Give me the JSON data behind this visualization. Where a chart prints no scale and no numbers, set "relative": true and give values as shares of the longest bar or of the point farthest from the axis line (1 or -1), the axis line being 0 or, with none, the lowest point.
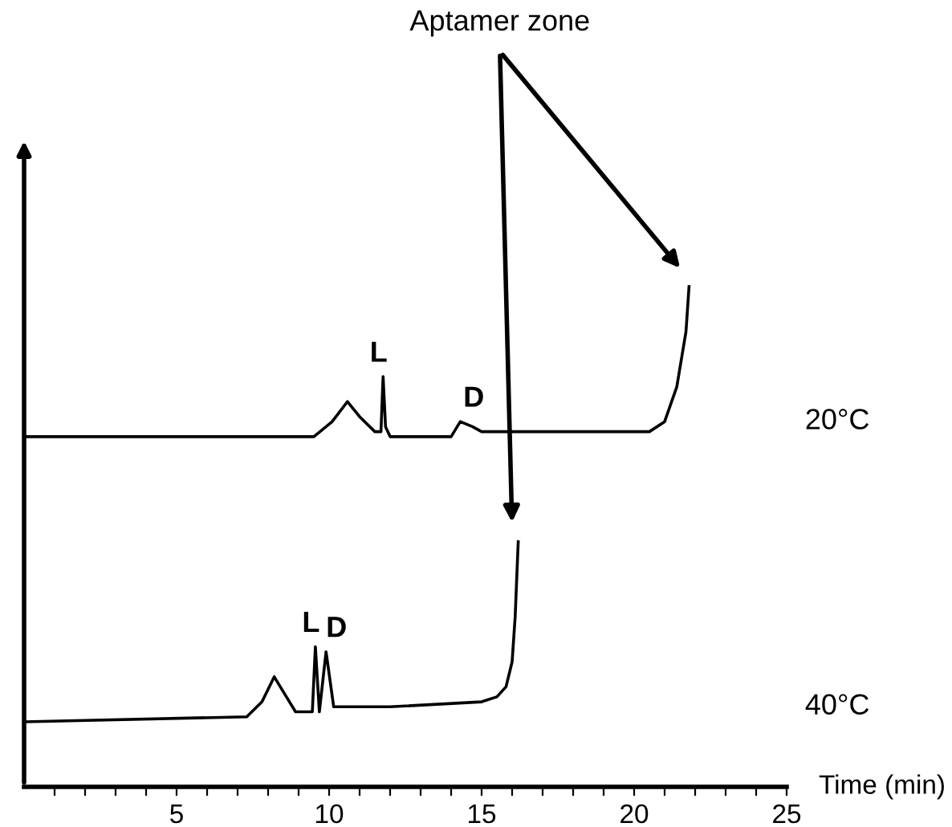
{
  "chart_data": {
    "type": "line",
    "relative": true,
    "xlabel": "Time (min)",
    "xlim": [
      0,
      25
    ],
    "xticks": [
      {
        "value": 1,
        "label": null
      },
      {
        "value": 2,
        "label": null
      },
      {
        "value": 3,
        "label": null
      },
      {
        "value": 4,
        "label": null
      },
      5,
      {
        "value": 6,
        "label": null
      },
      {
        "value": 7,
        "label": null
      },
      {
        "value": 8,
        "label": null
      },
      {
        "value": 9,
        "label": null
      },
      10,
      {
        "value": 11,
        "label": null
      },
      {
        "value": 12,
        "label": null
      },
      {
        "value": 13,
        "label": null
      },
      {
        "value": 14,
        "label": null
      },
      15,
      {
        "value": 16,
        "label": null
      },
      {
        "value": 17,
        "label": null
      },
      {
        "value": 18,
        "label": null
      },
      {
        "value": 19,
        "label": null
      },
      20,
      {
        "value": 21,
        "label": null
      },
      {
        "value": 22,
        "label": null
      },
      {
        "value": 23,
        "label": null
      },
      {
        "value": 24,
        "label": null
      },
      25
    ],
    "tick_labels": "x",
    "grid": false,
    "legend": false,
    "marker": "none",
    "line_style": "solid",
    "series": [
      {
        "name": "20°C",
        "color": "#000000",
        "x": [
          0,
          9.5,
          10.1,
          10.6,
          11.0,
          11.5,
          11.7,
          11.77,
          11.85,
          12.0,
          14.0,
          14.3,
          14.7,
          15.0,
          17,
          20.5,
          21.0,
          21.4,
          21.7,
          21.8
        ],
        "values": [
          0.7,
          0.7,
          0.73,
          0.77,
          0.74,
          0.71,
          0.71,
          0.82,
          0.72,
          0.7,
          0.7,
          0.73,
          0.72,
          0.71,
          0.71,
          0.71,
          0.73,
          0.8,
          0.91,
          1
        ]
      },
      {
        "name": "40°C",
        "color": "#000000",
        "x": [
          0,
          7.3,
          7.8,
          8.2,
          8.6,
          8.9,
          9.3,
          9.45,
          9.55,
          9.68,
          9.9,
          10.15,
          12,
          15,
          15.5,
          15.8,
          16.0,
          16.1,
          16.2
        ],
        "values": [
          0.13,
          0.14,
          0.17,
          0.22,
          0.18,
          0.15,
          0.15,
          0.15,
          0.28,
          0.15,
          0.27,
          0.16,
          0.16,
          0.17,
          0.18,
          0.2,
          0.25,
          0.34,
          0.49
        ]
      }
    ],
    "annotations": [
      {
        "text": "L",
        "x": 11.77,
        "y": 0.82
      },
      {
        "text": "D",
        "x": 14.4,
        "y": 0.73
      },
      {
        "text": "L",
        "x": 9.55,
        "y": 0.28
      },
      {
        "text": "D",
        "x": 9.9,
        "y": 0.27
      },
      "Aptamer zone"
    ]
  }
}
